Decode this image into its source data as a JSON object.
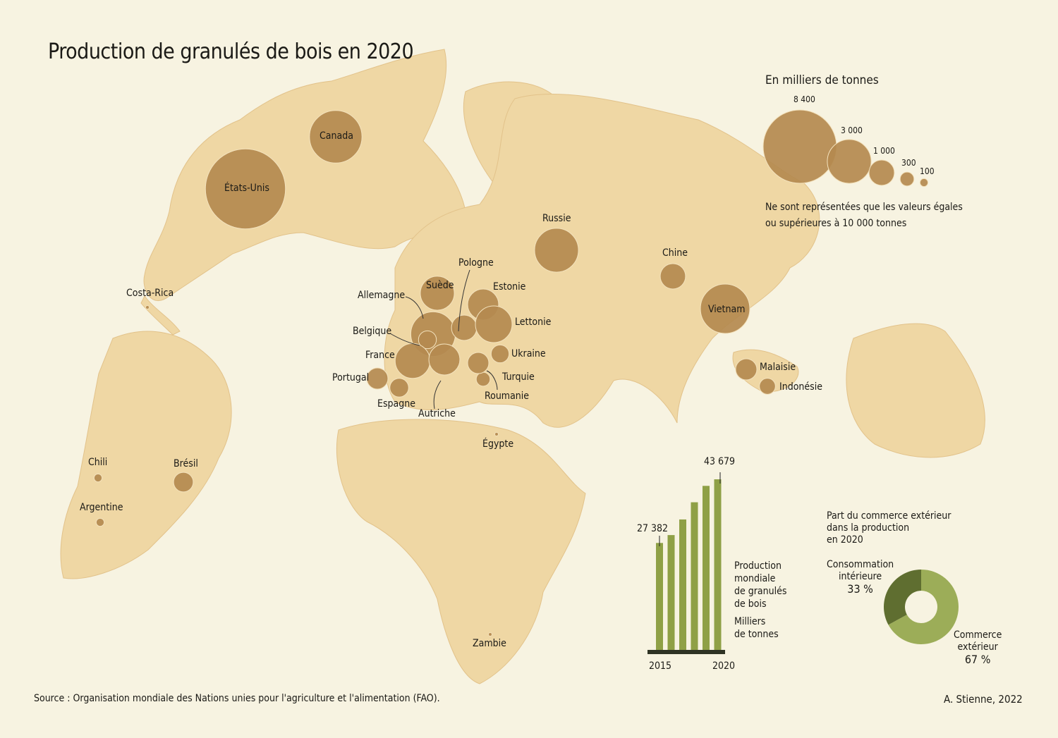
{
  "title": "Production de granulés de bois en 2020",
  "legend": {
    "title": "En milliers de tonnes",
    "sizes": [
      {
        "label": "8 400",
        "value": 8400
      },
      {
        "label": "3 000",
        "value": 3000
      },
      {
        "label": "1 000",
        "value": 1000
      },
      {
        "label": "300",
        "value": 300
      },
      {
        "label": "100",
        "value": 100
      }
    ],
    "note_line1": "Ne sont représentées que les valeurs égales",
    "note_line2": "ou supérieures à 10 000 tonnes"
  },
  "countries": [
    {
      "name": "États-Unis",
      "value": 10000
    },
    {
      "name": "Canada",
      "value": 4300
    },
    {
      "name": "Russie",
      "value": 3000
    },
    {
      "name": "Vietnam",
      "value": 3800
    },
    {
      "name": "Chine",
      "value": 1000
    },
    {
      "name": "Malaisie",
      "value": 700
    },
    {
      "name": "Indonésie",
      "value": 400
    },
    {
      "name": "Brésil",
      "value": 600
    },
    {
      "name": "Chili",
      "value": 100
    },
    {
      "name": "Argentine",
      "value": 100
    },
    {
      "name": "Costa-Rica",
      "value": 10
    },
    {
      "name": "Égypte",
      "value": 10
    },
    {
      "name": "Zambie",
      "value": 10
    },
    {
      "name": "Suède",
      "value": 1800
    },
    {
      "name": "Allemagne",
      "value": 3100
    },
    {
      "name": "Pologne",
      "value": 1000
    },
    {
      "name": "Estonie",
      "value": 1500
    },
    {
      "name": "Lettonie",
      "value": 2100
    },
    {
      "name": "Belgique",
      "value": 500
    },
    {
      "name": "France",
      "value": 1900
    },
    {
      "name": "Ukraine",
      "value": 500
    },
    {
      "name": "Portugal",
      "value": 700
    },
    {
      "name": "Espagne",
      "value": 550
    },
    {
      "name": "Turquie",
      "value": 300
    },
    {
      "name": "Roumanie",
      "value": 700
    },
    {
      "name": "Autriche",
      "value": 1500
    }
  ],
  "bar_chart": {
    "title_lines": [
      "Production",
      "mondiale",
      "de granulés",
      "de bois"
    ],
    "unit_lines": [
      "Milliers",
      "de tonnes"
    ],
    "years": [
      2015,
      2016,
      2017,
      2018,
      2019,
      2020
    ],
    "values": [
      27382,
      29400,
      33400,
      37800,
      42000,
      43679
    ],
    "first_label": "27 382",
    "last_label": "43 679",
    "x_start": "2015",
    "x_end": "2020",
    "color": "#8fa046"
  },
  "donut": {
    "title_lines": [
      "Part du commerce extérieur",
      "dans la production",
      "en 2020"
    ],
    "segments": [
      {
        "label_lines": [
          "Consommation",
          "intérieure"
        ],
        "pct_label": "33 %",
        "value": 33,
        "color": "#5f6e30"
      },
      {
        "label_lines": [
          "Commerce",
          "extérieur"
        ],
        "pct_label": "67 %",
        "value": 67,
        "color": "#9cad58"
      }
    ]
  },
  "source": "Source : Organisation mondiale des Nations unies pour l'agriculture et l'alimentation (FAO).",
  "author": "A. Stienne, 2022",
  "colors": {
    "bubble": "#b48a4f",
    "land": "#f0d9a8",
    "paper": "#f7f3e1"
  }
}
